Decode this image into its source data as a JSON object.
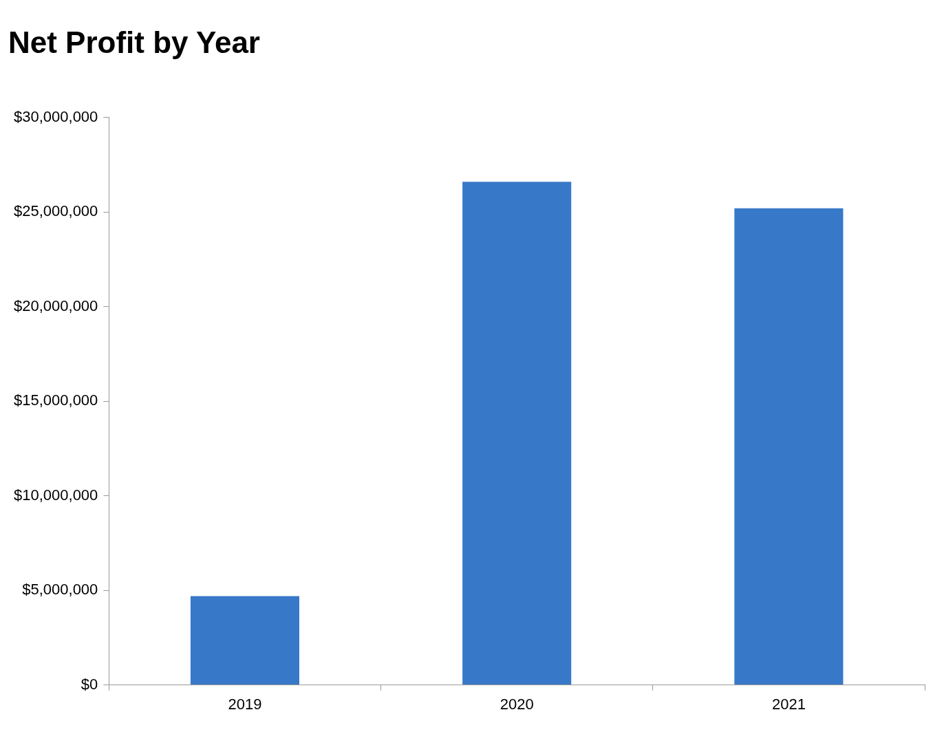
{
  "chart_data": {
    "type": "bar",
    "title": "Net Profit by Year",
    "categories": [
      "2019",
      "2020",
      "2021"
    ],
    "values": [
      4700000,
      26600000,
      25200000
    ],
    "color": "#3878c8",
    "ylim": [
      0,
      30000000
    ],
    "yticks": [
      {
        "value": 0,
        "label": "$0"
      },
      {
        "value": 5000000,
        "label": "$5,000,000"
      },
      {
        "value": 10000000,
        "label": "$10,000,000"
      },
      {
        "value": 15000000,
        "label": "$15,000,000"
      },
      {
        "value": 20000000,
        "label": "$20,000,000"
      },
      {
        "value": 25000000,
        "label": "$25,000,000"
      },
      {
        "value": 30000000,
        "label": "$30,000,000"
      }
    ],
    "grid": false
  }
}
